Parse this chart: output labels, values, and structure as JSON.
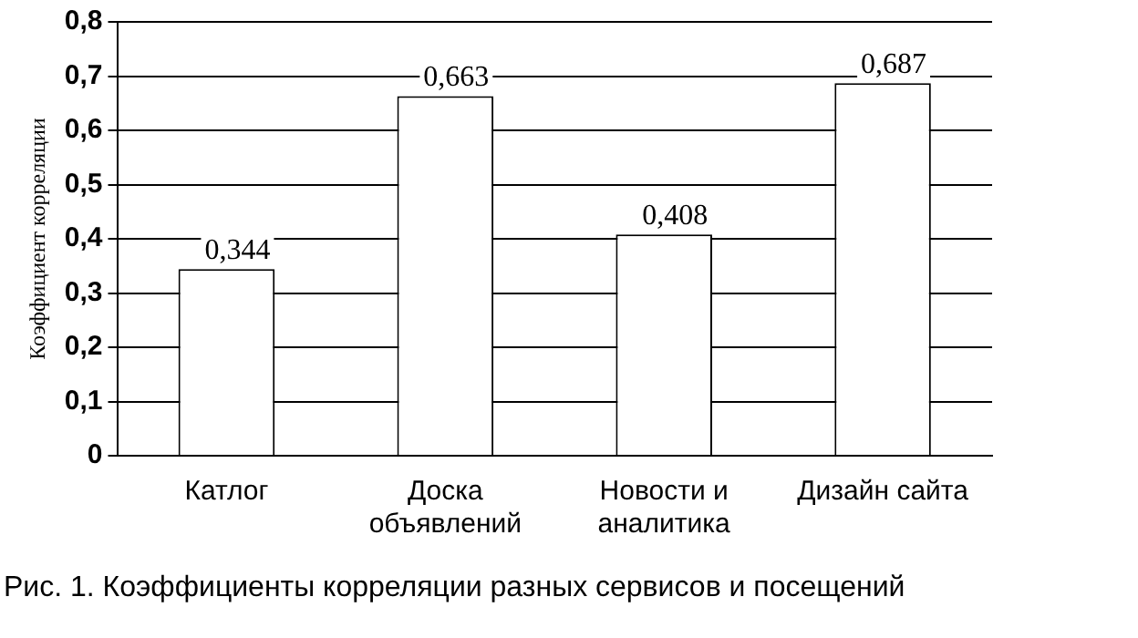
{
  "chart_data": {
    "type": "bar",
    "ylabel": "Коэффициент корреляции",
    "categories": [
      "Катлог",
      "Доска объявлений",
      "Новости и аналитика",
      "Дизайн сайта"
    ],
    "values": [
      0.344,
      0.663,
      0.408,
      0.687
    ],
    "value_labels": [
      "0,344",
      "0,663",
      "0,408",
      "0,687"
    ],
    "color": "#ffffff",
    "ylim": [
      0,
      0.8
    ],
    "yticks": [
      0,
      {
        "value": 0.1,
        "label": "0,1"
      },
      {
        "value": 0.2,
        "label": "0,2"
      },
      {
        "value": 0.3,
        "label": "0,3"
      },
      {
        "value": 0.4,
        "label": "0,4"
      },
      {
        "value": 0.5,
        "label": "0,5"
      },
      {
        "value": 0.6,
        "label": "0,6"
      },
      {
        "value": 0.7,
        "label": "0,7"
      },
      {
        "value": 0.8,
        "label": "0,8"
      }
    ],
    "grid": "y",
    "legend": false,
    "annotations": [
      "Рис. 1. Коэффициенты корреляции разных сервисов и посещений"
    ]
  }
}
